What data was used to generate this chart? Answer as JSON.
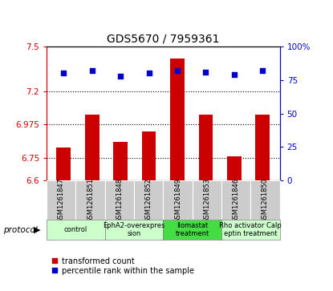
{
  "title": "GDS5670 / 7959361",
  "samples": [
    "GSM1261847",
    "GSM1261851",
    "GSM1261848",
    "GSM1261852",
    "GSM1261849",
    "GSM1261853",
    "GSM1261846",
    "GSM1261850"
  ],
  "bar_values": [
    6.82,
    7.04,
    6.86,
    6.93,
    7.42,
    7.04,
    6.76,
    7.04
  ],
  "dot_values": [
    80,
    82,
    78,
    80,
    82,
    81,
    79,
    82
  ],
  "ymin": 6.6,
  "ymax": 7.5,
  "y2min": 0,
  "y2max": 100,
  "yticks": [
    6.6,
    6.75,
    6.975,
    7.2,
    7.5
  ],
  "y2ticks": [
    0,
    25,
    50,
    75,
    100
  ],
  "bar_color": "#cc0000",
  "dot_color": "#0000cc",
  "bar_width": 0.5,
  "protocols": [
    {
      "label": "control",
      "start": 0,
      "end": 2,
      "color": "#ccffcc"
    },
    {
      "label": "EphA2-overexpres\nsion",
      "start": 2,
      "end": 4,
      "color": "#ccffcc"
    },
    {
      "label": "Ilomastat\ntreatment",
      "start": 4,
      "end": 6,
      "color": "#44dd44"
    },
    {
      "label": "Rho activator Calp\neptin treatment",
      "start": 6,
      "end": 8,
      "color": "#ccffcc"
    }
  ],
  "legend_bar_label": "transformed count",
  "legend_dot_label": "percentile rank within the sample",
  "protocol_label": "protocol",
  "bar_color_left": "#cc0000",
  "dot_color_right": "#0000cc",
  "dotted_lines": [
    6.75,
    6.975,
    7.2
  ],
  "sample_box_color": "#cccccc"
}
